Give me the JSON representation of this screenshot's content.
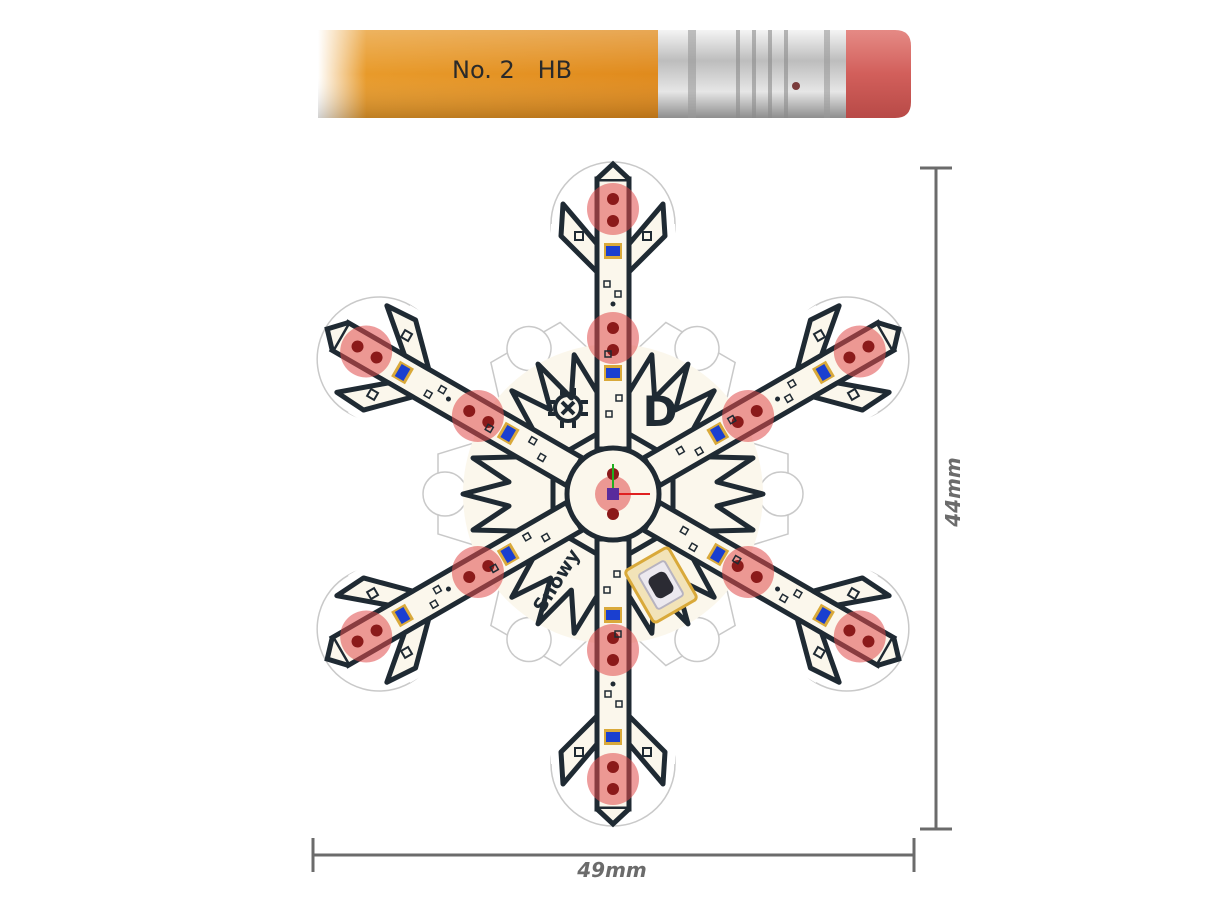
{
  "pencil": {
    "label": "No. 2   HB",
    "colors": {
      "body": "#e89a2a",
      "ferrule": "#c8c8c8",
      "eraser": "#d86a6a"
    }
  },
  "board": {
    "name_text": "Snowy",
    "logo_letter": "D",
    "colors": {
      "substrate": "#fbf7ec",
      "trace": "#1f2a33",
      "pad_highlight": "#e04b4b",
      "led": "#1a3fd0",
      "pad_gold": "#d9a93a"
    }
  },
  "dimensions": {
    "height_label": "44mm",
    "width_label": "49mm",
    "color": "#6b6b6b"
  }
}
